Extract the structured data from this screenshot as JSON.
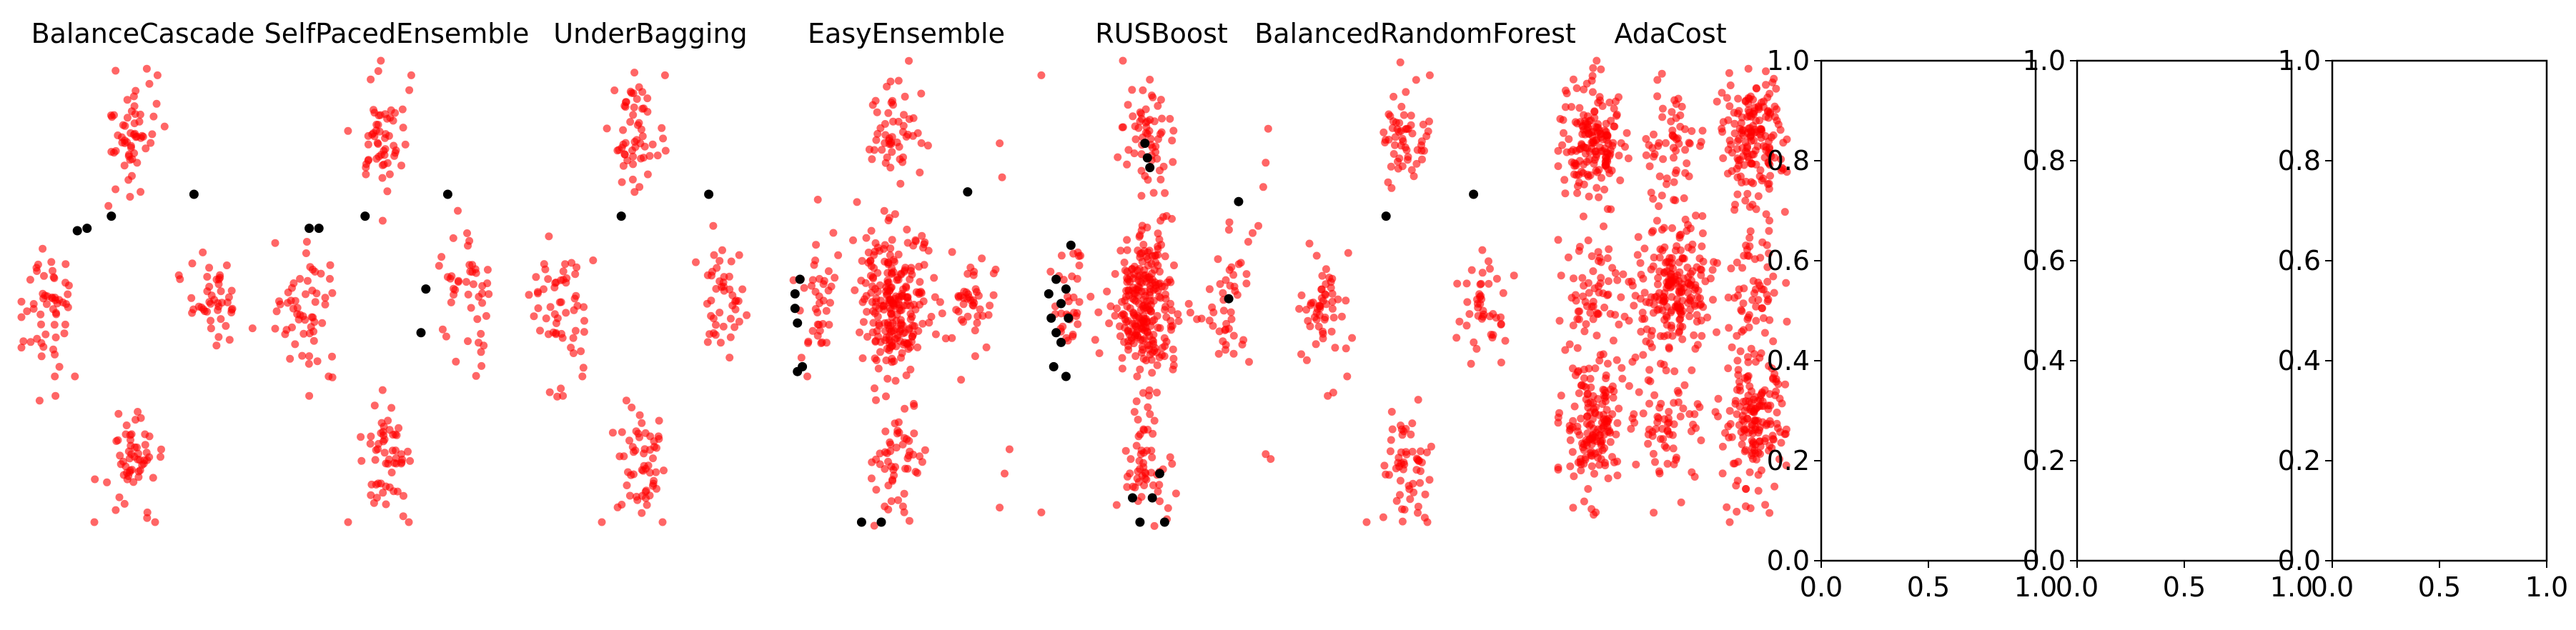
{
  "figure": {
    "background": "#ffffff",
    "minority_color": "#ff0000",
    "majority_color": "#000000"
  },
  "chart_data": [
    {
      "type": "scatter",
      "title": "BalanceCascade",
      "axis_visible": false,
      "xlim": [
        0,
        1
      ],
      "ylim": [
        0,
        1
      ],
      "series": [
        {
          "color": "#ff0000",
          "alpha": 0.6,
          "clusters": [
            {
              "center": [
                0.45,
                0.85
              ],
              "spread": [
                0.05,
                0.055
              ],
              "count": 55
            },
            {
              "center": [
                0.12,
                0.49
              ],
              "spread": [
                0.055,
                0.065
              ],
              "count": 55
            },
            {
              "center": [
                0.79,
                0.51
              ],
              "spread": [
                0.05,
                0.06
              ],
              "count": 45
            },
            {
              "center": [
                0.46,
                0.17
              ],
              "spread": [
                0.05,
                0.06
              ],
              "count": 55
            }
          ],
          "points": [
            [
              0.14,
              0.31
            ],
            [
              0.22,
              0.35
            ],
            [
              0.3,
              0.05
            ],
            [
              0.55,
              0.05
            ],
            [
              0.56,
              0.97
            ],
            [
              0.49,
              0.73
            ]
          ]
        },
        {
          "color": "#000000",
          "points": [
            [
              0.23,
              0.65
            ],
            [
              0.27,
              0.655
            ],
            [
              0.37,
              0.68
            ],
            [
              0.71,
              0.725
            ]
          ]
        }
      ]
    },
    {
      "type": "scatter",
      "title": "SelfPacedEnsemble",
      "axis_visible": false,
      "xlim": [
        0,
        1
      ],
      "ylim": [
        0,
        1
      ],
      "series": [
        {
          "color": "#ff0000",
          "alpha": 0.6,
          "clusters": [
            {
              "center": [
                0.45,
                0.85
              ],
              "spread": [
                0.05,
                0.055
              ],
              "count": 55
            },
            {
              "center": [
                0.12,
                0.49
              ],
              "spread": [
                0.055,
                0.065
              ],
              "count": 55
            },
            {
              "center": [
                0.79,
                0.51
              ],
              "spread": [
                0.05,
                0.06
              ],
              "count": 45
            },
            {
              "center": [
                0.46,
                0.17
              ],
              "spread": [
                0.05,
                0.06
              ],
              "count": 55
            }
          ],
          "points": [
            [
              0.14,
              0.31
            ],
            [
              0.22,
              0.35
            ],
            [
              0.3,
              0.05
            ],
            [
              0.55,
              0.05
            ],
            [
              0.56,
              0.97
            ]
          ]
        },
        {
          "color": "#000000",
          "points": [
            [
              0.14,
              0.655
            ],
            [
              0.18,
              0.655
            ],
            [
              0.37,
              0.68
            ],
            [
              0.71,
              0.725
            ],
            [
              0.62,
              0.53
            ],
            [
              0.6,
              0.44
            ]
          ]
        }
      ]
    },
    {
      "type": "scatter",
      "title": "UnderBagging",
      "axis_visible": false,
      "xlim": [
        0,
        1
      ],
      "ylim": [
        0,
        1
      ],
      "series": [
        {
          "color": "#ff0000",
          "alpha": 0.6,
          "clusters": [
            {
              "center": [
                0.45,
                0.85
              ],
              "spread": [
                0.05,
                0.055
              ],
              "count": 55
            },
            {
              "center": [
                0.12,
                0.49
              ],
              "spread": [
                0.055,
                0.065
              ],
              "count": 55
            },
            {
              "center": [
                0.79,
                0.51
              ],
              "spread": [
                0.05,
                0.06
              ],
              "count": 45
            },
            {
              "center": [
                0.46,
                0.17
              ],
              "spread": [
                0.05,
                0.06
              ],
              "count": 55
            }
          ],
          "points": [
            [
              0.14,
              0.31
            ],
            [
              0.22,
              0.35
            ],
            [
              0.3,
              0.05
            ],
            [
              0.55,
              0.05
            ],
            [
              0.56,
              0.97
            ]
          ]
        },
        {
          "color": "#000000",
          "points": [
            [
              0.38,
              0.68
            ],
            [
              0.74,
              0.725
            ]
          ]
        }
      ]
    },
    {
      "type": "scatter",
      "title": "EasyEnsemble",
      "axis_visible": false,
      "xlim": [
        0,
        1
      ],
      "ylim": [
        0,
        1
      ],
      "series": [
        {
          "color": "#ff0000",
          "alpha": 0.6,
          "clusters": [
            {
              "center": [
                0.45,
                0.85
              ],
              "spread": [
                0.05,
                0.055
              ],
              "count": 55
            },
            {
              "center": [
                0.45,
                0.5
              ],
              "spread": [
                0.065,
                0.075
              ],
              "count": 240
            },
            {
              "center": [
                0.15,
                0.5
              ],
              "spread": [
                0.045,
                0.065
              ],
              "count": 40
            },
            {
              "center": [
                0.78,
                0.5
              ],
              "spread": [
                0.05,
                0.065
              ],
              "count": 45
            },
            {
              "center": [
                0.45,
                0.17
              ],
              "spread": [
                0.05,
                0.06
              ],
              "count": 55
            }
          ],
          "points": [
            [
              0.88,
              0.83
            ],
            [
              0.89,
              0.76
            ],
            [
              0.92,
              0.2
            ],
            [
              0.9,
              0.15
            ],
            [
              0.88,
              0.08
            ],
            [
              0.1,
              0.35
            ]
          ]
        },
        {
          "color": "#000000",
          "points": [
            [
              0.05,
              0.52
            ],
            [
              0.07,
              0.55
            ],
            [
              0.05,
              0.49
            ],
            [
              0.06,
              0.46
            ],
            [
              0.08,
              0.37
            ],
            [
              0.06,
              0.36
            ],
            [
              0.32,
              0.05
            ],
            [
              0.4,
              0.05
            ],
            [
              0.75,
              0.73
            ]
          ]
        }
      ]
    },
    {
      "type": "scatter",
      "title": "RUSBoost",
      "axis_visible": false,
      "xlim": [
        0,
        1
      ],
      "ylim": [
        0,
        1
      ],
      "series": [
        {
          "color": "#ff0000",
          "alpha": 0.6,
          "clusters": [
            {
              "center": [
                0.45,
                0.85
              ],
              "spread": [
                0.05,
                0.055
              ],
              "count": 55
            },
            {
              "center": [
                0.44,
                0.5
              ],
              "spread": [
                0.06,
                0.08
              ],
              "count": 260
            },
            {
              "center": [
                0.13,
                0.5
              ],
              "spread": [
                0.045,
                0.06
              ],
              "count": 35
            },
            {
              "center": [
                0.78,
                0.5
              ],
              "spread": [
                0.05,
                0.065
              ],
              "count": 45
            },
            {
              "center": [
                0.45,
                0.17
              ],
              "spread": [
                0.05,
                0.06
              ],
              "count": 55
            }
          ],
          "points": [
            [
              0.02,
              0.97
            ],
            [
              0.94,
              0.86
            ],
            [
              0.93,
              0.79
            ],
            [
              0.92,
              0.74
            ],
            [
              0.9,
              0.66
            ],
            [
              0.93,
              0.19
            ],
            [
              0.95,
              0.18
            ],
            [
              0.02,
              0.07
            ]
          ]
        },
        {
          "color": "#000000",
          "points": [
            [
              0.05,
              0.52
            ],
            [
              0.08,
              0.55
            ],
            [
              0.1,
              0.5
            ],
            [
              0.06,
              0.47
            ],
            [
              0.12,
              0.53
            ],
            [
              0.08,
              0.44
            ],
            [
              0.1,
              0.42
            ],
            [
              0.13,
              0.47
            ],
            [
              0.07,
              0.37
            ],
            [
              0.12,
              0.35
            ],
            [
              0.14,
              0.62
            ],
            [
              0.44,
              0.83
            ],
            [
              0.45,
              0.8
            ],
            [
              0.46,
              0.78
            ],
            [
              0.82,
              0.71
            ],
            [
              0.78,
              0.51
            ],
            [
              0.39,
              0.1
            ],
            [
              0.47,
              0.1
            ],
            [
              0.5,
              0.15
            ],
            [
              0.42,
              0.05
            ],
            [
              0.52,
              0.05
            ]
          ]
        }
      ]
    },
    {
      "type": "scatter",
      "title": "BalancedRandomForest",
      "axis_visible": false,
      "xlim": [
        0,
        1
      ],
      "ylim": [
        0,
        1
      ],
      "series": [
        {
          "color": "#ff0000",
          "alpha": 0.6,
          "clusters": [
            {
              "center": [
                0.45,
                0.85
              ],
              "spread": [
                0.05,
                0.055
              ],
              "count": 55
            },
            {
              "center": [
                0.12,
                0.49
              ],
              "spread": [
                0.055,
                0.065
              ],
              "count": 55
            },
            {
              "center": [
                0.79,
                0.51
              ],
              "spread": [
                0.05,
                0.06
              ],
              "count": 45
            },
            {
              "center": [
                0.46,
                0.17
              ],
              "spread": [
                0.05,
                0.06
              ],
              "count": 55
            }
          ],
          "points": [
            [
              0.14,
              0.31
            ],
            [
              0.22,
              0.35
            ],
            [
              0.3,
              0.05
            ],
            [
              0.55,
              0.05
            ],
            [
              0.56,
              0.97
            ]
          ]
        },
        {
          "color": "#000000",
          "points": [
            [
              0.38,
              0.68
            ],
            [
              0.74,
              0.725
            ]
          ]
        }
      ]
    },
    {
      "type": "scatter",
      "title": "AdaCost",
      "axis_visible": false,
      "xlim": [
        0,
        1
      ],
      "ylim": [
        0,
        1
      ],
      "series": [
        {
          "color": "#ff0000",
          "alpha": 0.6,
          "clusters": [
            {
              "center": [
                0.15,
                0.83
              ],
              "spread": [
                0.07,
                0.065
              ],
              "count": 170
            },
            {
              "center": [
                0.5,
                0.83
              ],
              "spread": [
                0.07,
                0.06
              ],
              "count": 60
            },
            {
              "center": [
                0.85,
                0.83
              ],
              "spread": [
                0.07,
                0.065
              ],
              "count": 170
            },
            {
              "center": [
                0.15,
                0.53
              ],
              "spread": [
                0.065,
                0.06
              ],
              "count": 60
            },
            {
              "center": [
                0.5,
                0.53
              ],
              "spread": [
                0.08,
                0.07
              ],
              "count": 220
            },
            {
              "center": [
                0.85,
                0.53
              ],
              "spread": [
                0.065,
                0.06
              ],
              "count": 60
            },
            {
              "center": [
                0.15,
                0.25
              ],
              "spread": [
                0.07,
                0.07
              ],
              "count": 170
            },
            {
              "center": [
                0.5,
                0.25
              ],
              "spread": [
                0.07,
                0.06
              ],
              "count": 60
            },
            {
              "center": [
                0.85,
                0.25
              ],
              "spread": [
                0.07,
                0.07
              ],
              "count": 170
            }
          ],
          "points": [
            [
              0.75,
              0.05
            ]
          ]
        }
      ]
    },
    {
      "type": "scatter",
      "title": "",
      "axis_visible": true,
      "xlim": [
        0,
        1
      ],
      "ylim": [
        0,
        1
      ],
      "xticks": [
        "0.0",
        "0.5",
        "1.0"
      ],
      "yticks": [
        "0.0",
        "0.2",
        "0.4",
        "0.6",
        "0.8",
        "1.0"
      ],
      "series": []
    },
    {
      "type": "scatter",
      "title": "",
      "axis_visible": true,
      "xlim": [
        0,
        1
      ],
      "ylim": [
        0,
        1
      ],
      "xticks": [
        "0.0",
        "0.5",
        "1.0"
      ],
      "yticks": [
        "0.0",
        "0.2",
        "0.4",
        "0.6",
        "0.8",
        "1.0"
      ],
      "series": []
    },
    {
      "type": "scatter",
      "title": "",
      "axis_visible": true,
      "xlim": [
        0,
        1
      ],
      "ylim": [
        0,
        1
      ],
      "xticks": [
        "0.0",
        "0.5",
        "1.0"
      ],
      "yticks": [
        "0.0",
        "0.2",
        "0.4",
        "0.6",
        "0.8",
        "1.0"
      ],
      "series": []
    }
  ]
}
